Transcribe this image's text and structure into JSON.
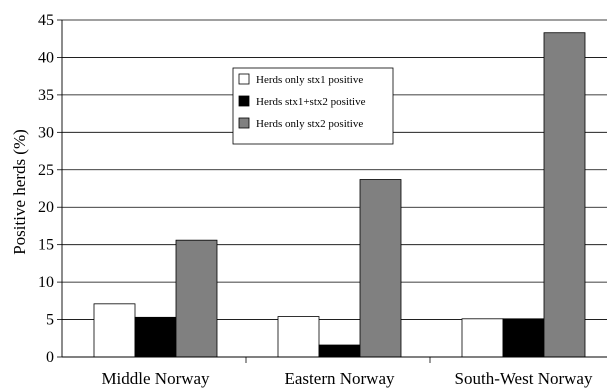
{
  "chart_data": {
    "type": "bar",
    "categories": [
      "Middle Norway",
      "Eastern Norway",
      "South-West Norway"
    ],
    "series": [
      {
        "name": "Herds only stx1 positive",
        "color": "#ffffff",
        "values": [
          7.1,
          5.4,
          5.1
        ]
      },
      {
        "name": "Herds stx1+stx2 positive",
        "color": "#000000",
        "values": [
          5.3,
          1.6,
          5.1
        ]
      },
      {
        "name": "Herds only stx2 positive",
        "color": "#808080",
        "values": [
          15.6,
          23.7,
          43.3
        ]
      }
    ],
    "title": "",
    "xlabel": "",
    "ylabel": "Positive herds (%)",
    "ylim": [
      0,
      45
    ],
    "yticks": [
      0,
      5,
      10,
      15,
      20,
      25,
      30,
      35,
      40,
      45
    ],
    "grid": true,
    "legend_position": "center-top"
  }
}
